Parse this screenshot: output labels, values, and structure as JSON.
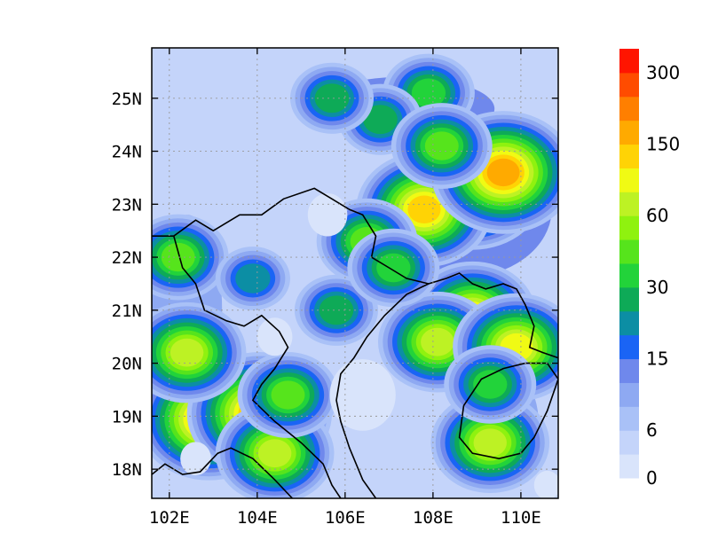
{
  "chart_data": {
    "type": "heatmap",
    "title": "",
    "xlabel": "",
    "ylabel": "",
    "xlim": [
      101.6,
      110.85
    ],
    "ylim": [
      17.45,
      25.95
    ],
    "x_ticks": [
      {
        "value": 102,
        "label": "102E"
      },
      {
        "value": 104,
        "label": "104E"
      },
      {
        "value": 106,
        "label": "106E"
      },
      {
        "value": 108,
        "label": "108E"
      },
      {
        "value": 110,
        "label": "110E"
      }
    ],
    "y_ticks": [
      {
        "value": 18,
        "label": "18N"
      },
      {
        "value": 19,
        "label": "19N"
      },
      {
        "value": 20,
        "label": "20N"
      },
      {
        "value": 21,
        "label": "21N"
      },
      {
        "value": 22,
        "label": "22N"
      },
      {
        "value": 23,
        "label": "23N"
      },
      {
        "value": 24,
        "label": "24N"
      },
      {
        "value": 25,
        "label": "25N"
      }
    ],
    "grid": true,
    "colorbar": {
      "levels": [
        0,
        3,
        6,
        9,
        12,
        15,
        20,
        25,
        30,
        40,
        50,
        60,
        80,
        100,
        150,
        200,
        250,
        300
      ],
      "labeled": [
        {
          "level": 0,
          "label": "0"
        },
        {
          "level": 6,
          "label": "6"
        },
        {
          "level": 15,
          "label": "15"
        },
        {
          "level": 30,
          "label": "30"
        },
        {
          "level": 60,
          "label": "60"
        },
        {
          "level": 150,
          "label": "150"
        },
        {
          "level": 300,
          "label": "300"
        }
      ],
      "colors": [
        "#d9e4fb",
        "#c4d4fa",
        "#a9c1f7",
        "#8ea9f2",
        "#6f88ec",
        "#1a64f5",
        "#0c8ea4",
        "#0eaa57",
        "#22d33a",
        "#56e41c",
        "#8ff20f",
        "#bdf224",
        "#f0fa14",
        "#ffd305",
        "#ffaa00",
        "#ff7f00",
        "#ff4c00",
        "#ff1500"
      ]
    },
    "hotspots": [
      {
        "lon": 108.9,
        "lat": 23.3,
        "value": 150
      },
      {
        "lon": 107.8,
        "lat": 22.9,
        "value": 100
      },
      {
        "lon": 109.6,
        "lat": 23.6,
        "value": 150
      },
      {
        "lon": 102.9,
        "lat": 18.95,
        "value": 150
      },
      {
        "lon": 104.05,
        "lat": 19.05,
        "value": 150
      },
      {
        "lon": 104.4,
        "lat": 18.3,
        "value": 60
      },
      {
        "lon": 102.4,
        "lat": 20.2,
        "value": 60
      },
      {
        "lon": 108.9,
        "lat": 20.9,
        "value": 80
      },
      {
        "lon": 108.1,
        "lat": 20.4,
        "value": 60
      },
      {
        "lon": 109.9,
        "lat": 20.3,
        "value": 80
      },
      {
        "lon": 109.3,
        "lat": 18.5,
        "value": 60
      },
      {
        "lon": 104.7,
        "lat": 19.4,
        "value": 40
      },
      {
        "lon": 106.5,
        "lat": 22.3,
        "value": 40
      },
      {
        "lon": 107.9,
        "lat": 25.1,
        "value": 30
      },
      {
        "lon": 106.8,
        "lat": 24.6,
        "value": 25
      },
      {
        "lon": 105.7,
        "lat": 25.0,
        "value": 25
      },
      {
        "lon": 108.2,
        "lat": 24.1,
        "value": 40
      },
      {
        "lon": 102.2,
        "lat": 22.0,
        "value": 40
      },
      {
        "lon": 105.8,
        "lat": 21.0,
        "value": 25
      },
      {
        "lon": 103.9,
        "lat": 21.6,
        "value": 20
      },
      {
        "lon": 109.3,
        "lat": 19.6,
        "value": 30
      },
      {
        "lon": 107.1,
        "lat": 21.8,
        "value": 30
      }
    ],
    "blanks": [
      {
        "lon": 106.4,
        "lat": 19.4,
        "r": 0.75
      },
      {
        "lon": 104.4,
        "lat": 20.5,
        "r": 0.4
      },
      {
        "lon": 105.6,
        "lat": 22.8,
        "r": 0.45
      },
      {
        "lon": 102.6,
        "lat": 18.2,
        "r": 0.35
      },
      {
        "lon": 110.6,
        "lat": 17.7,
        "r": 0.3
      }
    ]
  }
}
